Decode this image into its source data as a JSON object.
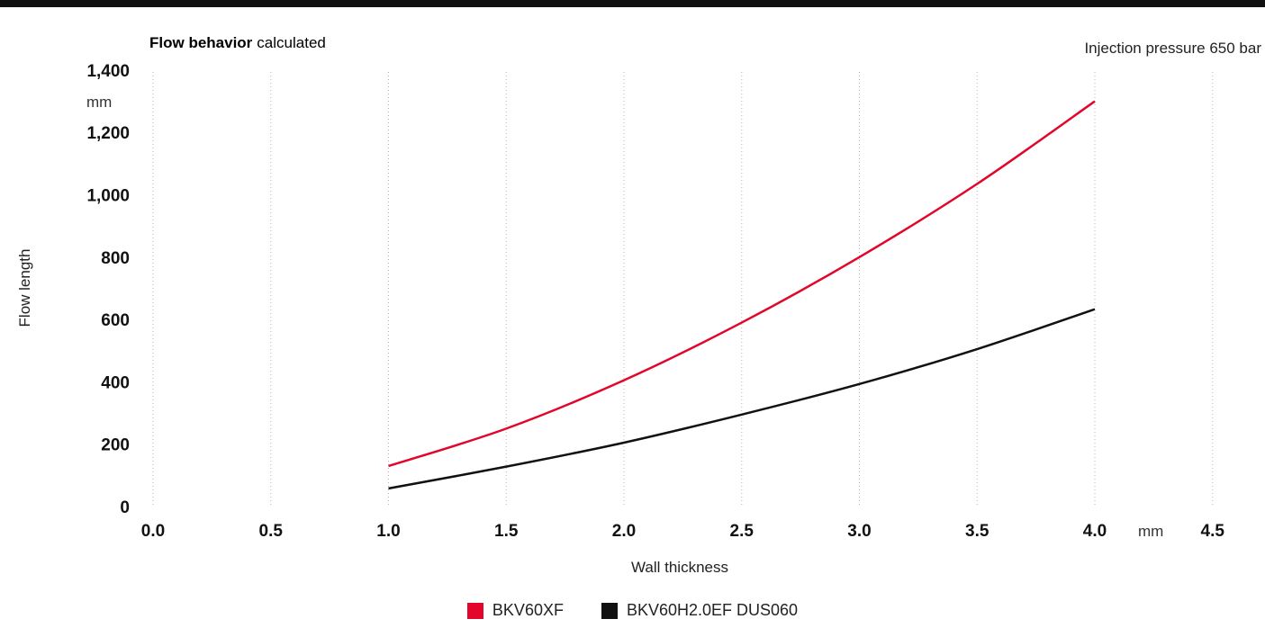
{
  "chart_data": {
    "type": "line",
    "title_bold": "Flow behavior",
    "title_rest": "calculated",
    "subtitle": "Injection pressure 650 bar",
    "xlabel": "Wall thickness",
    "x_unit": "mm",
    "ylabel": "Flow length",
    "y_unit": "mm",
    "xlim": [
      0.0,
      4.5
    ],
    "ylim": [
      0,
      1400
    ],
    "x_ticks": [
      "0.0",
      "0.5",
      "1.0",
      "1.5",
      "2.0",
      "2.5",
      "3.0",
      "3.5",
      "4.0",
      "4.5"
    ],
    "x_tick_values": [
      0.0,
      0.5,
      1.0,
      1.5,
      2.0,
      2.5,
      3.0,
      3.5,
      4.0,
      4.5
    ],
    "y_ticks": [
      "0",
      "200",
      "400",
      "600",
      "800",
      "1,000",
      "1,200",
      "1,400"
    ],
    "y_tick_values": [
      0,
      200,
      400,
      600,
      800,
      1000,
      1200,
      1400
    ],
    "grid": "vertical dotted",
    "legend_position": "bottom-center",
    "series": [
      {
        "name": "BKV60XF",
        "color": "#e2062b",
        "x": [
          1.0,
          1.5,
          2.0,
          2.5,
          3.0,
          3.5,
          4.0
        ],
        "y": [
          130,
          250,
          405,
          590,
          800,
          1035,
          1300
        ]
      },
      {
        "name": "BKV60H2.0EF DUS060",
        "color": "#111111",
        "x": [
          1.0,
          1.5,
          2.0,
          2.5,
          3.0,
          3.5,
          4.0
        ],
        "y": [
          58,
          128,
          205,
          295,
          393,
          505,
          633
        ]
      }
    ]
  }
}
